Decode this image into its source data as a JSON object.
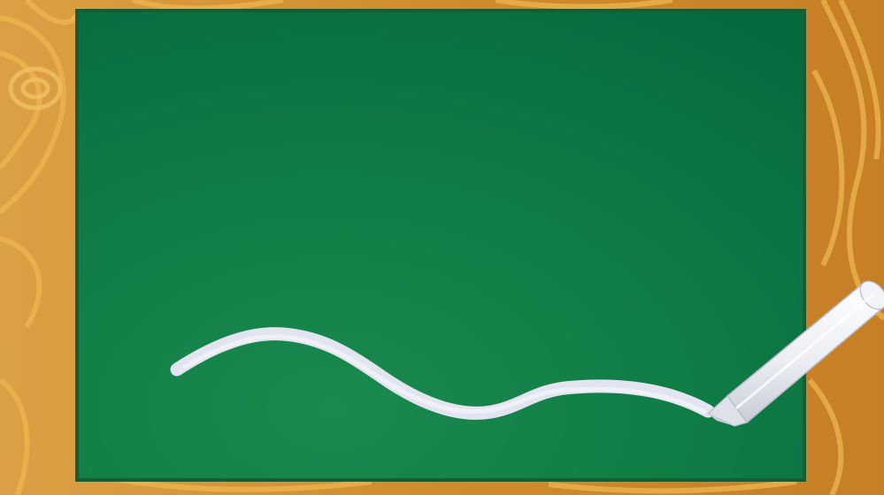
{
  "scene": {
    "description_free": true,
    "colors": {
      "wood_light": "#dc9a34",
      "wood_dark": "#b8741f",
      "wood_grain": "#f0bb55",
      "board_frame": "#1d5a2e",
      "board_light": "#1c8a4f",
      "board_dark": "#0c6b3f",
      "chalk_line": "#e3e6f1",
      "chalk_body": "#f1f2f7",
      "chalk_shadow": "#c4c7d3"
    },
    "icons": {
      "chalk": "chalk-icon"
    }
  }
}
